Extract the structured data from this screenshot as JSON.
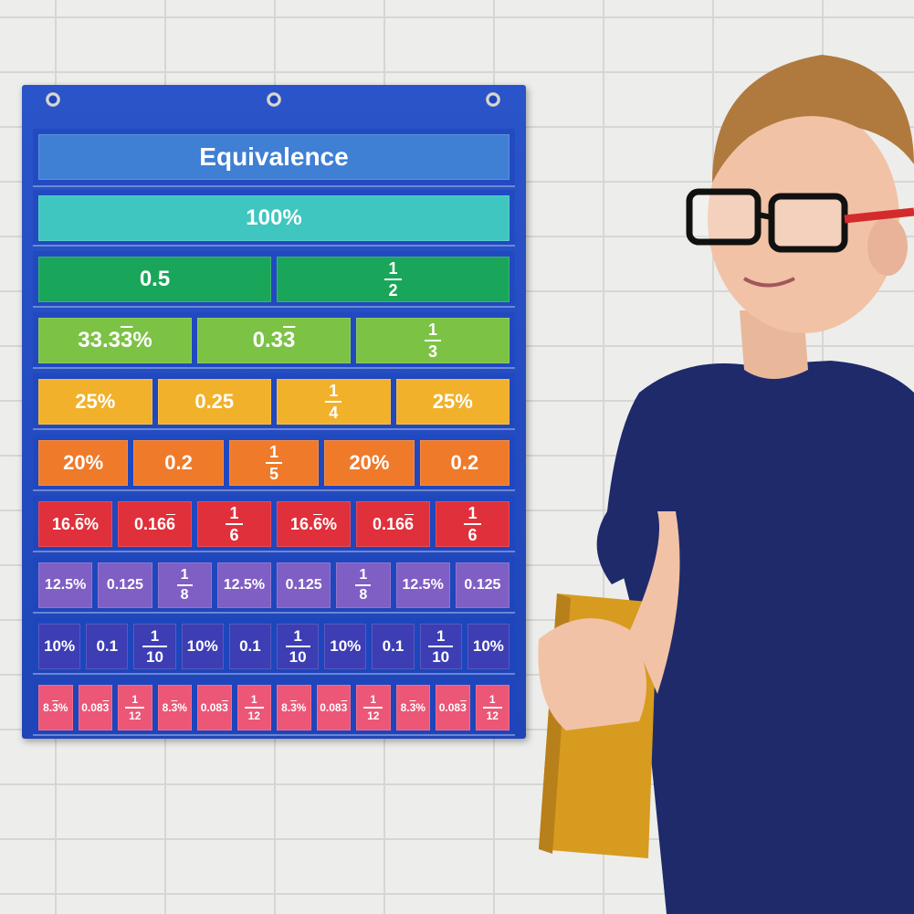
{
  "chart": {
    "title": "Equivalence",
    "rows": [
      {
        "color": "#3fc6c0",
        "cards": [
          {
            "t": "100%"
          }
        ]
      },
      {
        "color": "#1aa65a",
        "cards": [
          {
            "t": "0.5"
          },
          {
            "n": "1",
            "d": "2"
          }
        ]
      },
      {
        "color": "#7cc245",
        "cards": [
          {
            "t": "33.3",
            "ov": "3",
            "s": "%"
          },
          {
            "t": "0.3",
            "ov": "3"
          },
          {
            "n": "1",
            "d": "3"
          }
        ]
      },
      {
        "color": "#f2b12b",
        "cards": [
          {
            "t": "25%"
          },
          {
            "t": "0.25"
          },
          {
            "n": "1",
            "d": "4"
          },
          {
            "t": "25%"
          }
        ]
      },
      {
        "color": "#ef7a2a",
        "cards": [
          {
            "t": "20%"
          },
          {
            "t": "0.2"
          },
          {
            "n": "1",
            "d": "5"
          },
          {
            "t": "20%"
          },
          {
            "t": "0.2"
          }
        ]
      },
      {
        "color": "#e0303b",
        "cards": [
          {
            "t": "16.",
            "ov": "6",
            "s": "%"
          },
          {
            "t": "0.16",
            "ov": "6"
          },
          {
            "n": "1",
            "d": "6"
          },
          {
            "t": "16.",
            "ov": "6",
            "s": "%"
          },
          {
            "t": "0.16",
            "ov": "6"
          },
          {
            "n": "1",
            "d": "6"
          }
        ]
      },
      {
        "color": "#7f5fc4",
        "cards": [
          {
            "t": "12.5%"
          },
          {
            "t": "0.125"
          },
          {
            "n": "1",
            "d": "8"
          },
          {
            "t": "12.5%"
          },
          {
            "t": "0.125"
          },
          {
            "n": "1",
            "d": "8"
          },
          {
            "t": "12.5%"
          },
          {
            "t": "0.125"
          }
        ]
      },
      {
        "color": "#3d3db4",
        "cards": [
          {
            "t": "10%"
          },
          {
            "t": "0.1"
          },
          {
            "n": "1",
            "d": "10"
          },
          {
            "t": "10%"
          },
          {
            "t": "0.1"
          },
          {
            "n": "1",
            "d": "10"
          },
          {
            "t": "10%"
          },
          {
            "t": "0.1"
          },
          {
            "n": "1",
            "d": "10"
          },
          {
            "t": "10%"
          }
        ]
      },
      {
        "color": "#ec5677",
        "cards": [
          {
            "t": "8.",
            "ov": "3",
            "s": "%"
          },
          {
            "t": "0.08",
            "ov": "3"
          },
          {
            "n": "1",
            "d": "12"
          },
          {
            "t": "8.",
            "ov": "3",
            "s": "%"
          },
          {
            "t": "0.08",
            "ov": "3"
          },
          {
            "n": "1",
            "d": "12"
          },
          {
            "t": "8.",
            "ov": "3",
            "s": "%"
          },
          {
            "t": "0.08",
            "ov": "3"
          },
          {
            "n": "1",
            "d": "12"
          },
          {
            "t": "8.",
            "ov": "3",
            "s": "%"
          },
          {
            "t": "0.08",
            "ov": "3"
          },
          {
            "n": "1",
            "d": "12"
          }
        ]
      }
    ],
    "colors": {
      "frame": "#1f45b8",
      "title_card": "#3f7fd4"
    }
  }
}
